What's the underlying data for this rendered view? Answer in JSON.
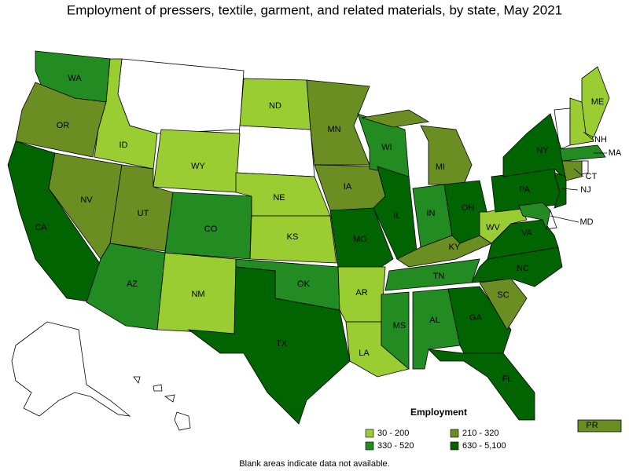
{
  "title": "Employment of pressers, textile, garment, and related materials, by state, May 2021",
  "legend": {
    "title": "Employment",
    "items": [
      {
        "label": "30 - 200",
        "color": "#9acd32"
      },
      {
        "label": "210 - 320",
        "color": "#6b8e23"
      },
      {
        "label": "330 - 520",
        "color": "#228b22"
      },
      {
        "label": "630 - 5,100",
        "color": "#006400"
      }
    ]
  },
  "states": [
    {
      "label": "WA",
      "employment": "330 - 520"
    },
    {
      "label": "OR",
      "employment": "210 - 320"
    },
    {
      "label": "CA",
      "employment": "630 - 5,100"
    },
    {
      "label": "NV",
      "employment": "210 - 320"
    },
    {
      "label": "ID",
      "employment": "30 - 200"
    },
    {
      "label": "WY",
      "employment": "30 - 200"
    },
    {
      "label": "UT",
      "employment": "210 - 320"
    },
    {
      "label": "CO",
      "employment": "330 - 520"
    },
    {
      "label": "AZ",
      "employment": "330 - 520"
    },
    {
      "label": "NM",
      "employment": "30 - 200"
    },
    {
      "label": "ND",
      "employment": "30 - 200"
    },
    {
      "label": "NE",
      "employment": "30 - 200"
    },
    {
      "label": "KS",
      "employment": "30 - 200"
    },
    {
      "label": "OK",
      "employment": "330 - 520"
    },
    {
      "label": "TX",
      "employment": "630 - 5,100"
    },
    {
      "label": "MN",
      "employment": "210 - 320"
    },
    {
      "label": "IA",
      "employment": "210 - 320"
    },
    {
      "label": "MO",
      "employment": "630 - 5,100"
    },
    {
      "label": "AR",
      "employment": "30 - 200"
    },
    {
      "label": "LA",
      "employment": "30 - 200"
    },
    {
      "label": "WI",
      "employment": "330 - 520"
    },
    {
      "label": "IL",
      "employment": "630 - 5,100"
    },
    {
      "label": "MI",
      "employment": "210 - 320"
    },
    {
      "label": "IN",
      "employment": "330 - 520"
    },
    {
      "label": "OH",
      "employment": "630 - 5,100"
    },
    {
      "label": "KY",
      "employment": "210 - 320"
    },
    {
      "label": "TN",
      "employment": "330 - 520"
    },
    {
      "label": "MS",
      "employment": "330 - 520"
    },
    {
      "label": "AL",
      "employment": "330 - 520"
    },
    {
      "label": "GA",
      "employment": "630 - 5,100"
    },
    {
      "label": "FL",
      "employment": "630 - 5,100"
    },
    {
      "label": "SC",
      "employment": "210 - 320"
    },
    {
      "label": "NC",
      "employment": "630 - 5,100"
    },
    {
      "label": "VA",
      "employment": "630 - 5,100"
    },
    {
      "label": "WV",
      "employment": "30 - 200"
    },
    {
      "label": "PA",
      "employment": "630 - 5,100"
    },
    {
      "label": "NY",
      "employment": "630 - 5,100"
    },
    {
      "label": "NJ",
      "employment": "630 - 5,100"
    },
    {
      "label": "MD",
      "employment": "330 - 520"
    },
    {
      "label": "NH",
      "employment": "30 - 200"
    },
    {
      "label": "ME",
      "employment": "30 - 200"
    },
    {
      "label": "MA",
      "employment": "330 - 520"
    },
    {
      "label": "CT",
      "employment": "210 - 320"
    },
    {
      "label": "PR",
      "employment": "210 - 320"
    }
  ],
  "footnote": "Blank areas indicate data not available."
}
